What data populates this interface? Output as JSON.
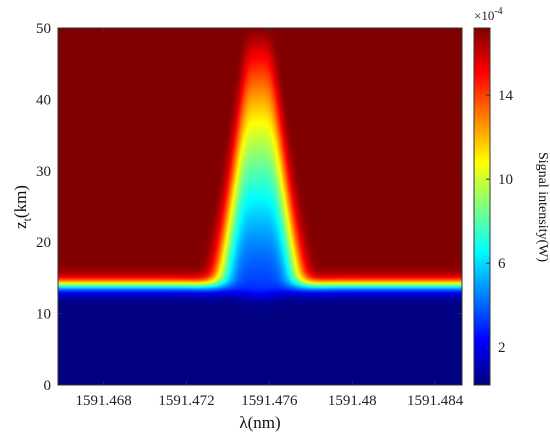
{
  "chart_data": {
    "type": "heatmap",
    "title": "",
    "xlabel": "λ(nm)",
    "ylabel_main": "z",
    "ylabel_sub": "t",
    "ylabel_unit": "(km)",
    "xlim": [
      1591.4658,
      1591.4853
    ],
    "ylim": [
      0,
      50
    ],
    "x_ticks": [
      1591.468,
      1591.472,
      1591.476,
      1591.48,
      1591.484
    ],
    "x_tick_labels": [
      "1591.468",
      "1591.472",
      "1591.476",
      "1591.48",
      "1591.484"
    ],
    "y_ticks": [
      0,
      10,
      20,
      30,
      40,
      50
    ],
    "y_tick_labels": [
      "0",
      "10",
      "20",
      "30",
      "40",
      "50"
    ],
    "colorbar": {
      "label": "Signal intensity(W)",
      "multiplier_base": "×10",
      "multiplier_exp": "-4",
      "range": [
        0.2,
        17.2
      ],
      "ticks": [
        2,
        6,
        10,
        14
      ],
      "tick_labels": [
        "2",
        "6",
        "10",
        "14"
      ],
      "colormap": "jet"
    },
    "intensity_model": {
      "plateau_intensity": 17.2,
      "base_intensity": 0.2,
      "transition_z_km": 14,
      "peak_center_nm": 1591.4755,
      "peak_top_halfwidth_nm": 0.0006,
      "peak_base_halfwidth_nm": 0.0022,
      "peak_top_z_km": 50,
      "peak_min_intensity": 3.4
    },
    "grid": false,
    "legend": "colorbar-right"
  }
}
